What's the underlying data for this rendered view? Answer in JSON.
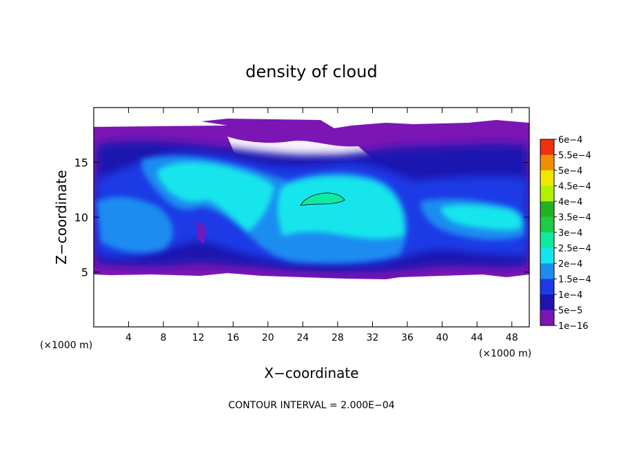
{
  "chart_data": {
    "type": "heatmap",
    "title": "density of cloud",
    "xlabel": "X−coordinate",
    "ylabel": "Z−coordinate",
    "x_unit_left": "(×1000 m)",
    "x_unit_right": "(×1000 m)",
    "xlim": [
      0,
      50
    ],
    "ylim": [
      0,
      20
    ],
    "x_ticks": [
      4,
      8,
      12,
      16,
      20,
      24,
      28,
      32,
      36,
      40,
      44,
      48
    ],
    "x_tick_labels": [
      "4",
      "8",
      "12",
      "16",
      "20",
      "24",
      "28",
      "32",
      "36",
      "40",
      "44",
      "48"
    ],
    "y_ticks": [
      5,
      10,
      15
    ],
    "y_tick_labels": [
      "5",
      "10",
      "15"
    ],
    "contour_interval_text": "CONTOUR INTERVAL = 2.000E−04",
    "colorbar": {
      "levels": [
        "1e−16",
        "5e−5",
        "1e−4",
        "1.5e−4",
        "2e−4",
        "2.5e−4",
        "3e−4",
        "3.5e−4",
        "4e−4",
        "4.5e−4",
        "5e−4",
        "5.5e−4",
        "6e−4"
      ],
      "colors": [
        "#7b16b5",
        "#1d14b0",
        "#1b3ae6",
        "#1c8cf0",
        "#12e6ec",
        "#10eaa0",
        "#1ccc44",
        "#23b023",
        "#b0f000",
        "#f0e800",
        "#f09000",
        "#f03010",
        "#f06868"
      ]
    },
    "regions": {
      "cloud_layer_z_range": [
        5,
        18
      ],
      "cyan_core_1": {
        "x_range": [
          8,
          21
        ],
        "z_range": [
          8,
          15
        ]
      },
      "cyan_core_2": {
        "x_range": [
          21,
          35
        ],
        "z_range": [
          6,
          13
        ]
      },
      "cyan_core_3": {
        "x_range": [
          38,
          49
        ],
        "z_range": [
          9,
          12
        ]
      },
      "closed_contour_2e-4": {
        "x_range": [
          23.8,
          29.5
        ],
        "z_range": [
          11,
          12.2
        ]
      }
    }
  }
}
